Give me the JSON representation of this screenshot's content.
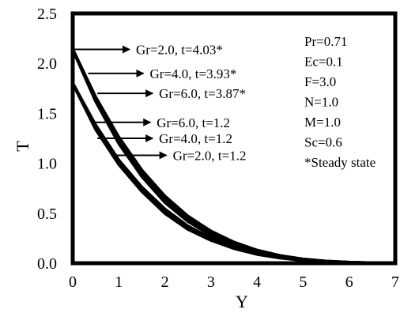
{
  "chart_data": {
    "type": "line",
    "xlabel": "Y",
    "ylabel": "T",
    "xlim": [
      0,
      7
    ],
    "ylim": [
      0,
      2.5
    ],
    "x_ticks": [
      "0",
      "1",
      "2",
      "3",
      "4",
      "5",
      "6",
      "7"
    ],
    "y_ticks": [
      "0.0",
      "0.5",
      "1.0",
      "1.5",
      "2.0",
      "2.5"
    ],
    "grid": false,
    "legend": "none",
    "series": [
      {
        "name": "Gr=2.0, t=4.03*",
        "x": [
          0,
          0.5,
          1,
          1.5,
          2,
          2.5,
          3,
          3.5,
          4,
          4.5,
          5,
          5.5,
          6,
          6.5,
          7
        ],
        "y": [
          2.14,
          1.62,
          1.2,
          0.87,
          0.61,
          0.42,
          0.28,
          0.18,
          0.11,
          0.065,
          0.035,
          0.017,
          0.007,
          0.002,
          0.0
        ]
      },
      {
        "name": "Gr=4.0, t=3.93*",
        "x": [
          0,
          0.5,
          1,
          1.5,
          2,
          2.5,
          3,
          3.5,
          4,
          4.5,
          5,
          5.5,
          6,
          6.5,
          7
        ],
        "y": [
          2.14,
          1.64,
          1.23,
          0.9,
          0.64,
          0.44,
          0.3,
          0.19,
          0.12,
          0.07,
          0.038,
          0.019,
          0.008,
          0.002,
          0.0
        ]
      },
      {
        "name": "Gr=6.0, t=3.87*",
        "x": [
          0,
          0.5,
          1,
          1.5,
          2,
          2.5,
          3,
          3.5,
          4,
          4.5,
          5,
          5.5,
          6,
          6.5,
          7
        ],
        "y": [
          2.14,
          1.66,
          1.26,
          0.93,
          0.67,
          0.47,
          0.32,
          0.21,
          0.13,
          0.075,
          0.04,
          0.02,
          0.009,
          0.003,
          0.0
        ]
      },
      {
        "name": "Gr=6.0, t=1.2",
        "x": [
          0,
          0.5,
          1,
          1.5,
          2,
          2.5,
          3,
          3.5,
          4,
          4.5,
          5,
          5.5,
          6,
          6.5,
          7
        ],
        "y": [
          1.8,
          1.38,
          1.03,
          0.76,
          0.54,
          0.37,
          0.25,
          0.16,
          0.1,
          0.06,
          0.033,
          0.016,
          0.007,
          0.002,
          0.0
        ]
      },
      {
        "name": "Gr=4.0, t=1.2",
        "x": [
          0,
          0.5,
          1,
          1.5,
          2,
          2.5,
          3,
          3.5,
          4,
          4.5,
          5,
          5.5,
          6,
          6.5,
          7
        ],
        "y": [
          1.8,
          1.36,
          1.01,
          0.74,
          0.52,
          0.36,
          0.24,
          0.155,
          0.095,
          0.056,
          0.031,
          0.015,
          0.006,
          0.002,
          0.0
        ]
      },
      {
        "name": "Gr=2.0, t=1.2",
        "x": [
          0,
          0.5,
          1,
          1.5,
          2,
          2.5,
          3,
          3.5,
          4,
          4.5,
          5,
          5.5,
          6,
          6.5,
          7
        ],
        "y": [
          1.8,
          1.34,
          0.99,
          0.72,
          0.5,
          0.34,
          0.23,
          0.148,
          0.09,
          0.053,
          0.029,
          0.014,
          0.006,
          0.002,
          0.0
        ]
      }
    ],
    "annotations": [
      {
        "text": "Gr=2.0, t=4.03*",
        "x": 0.0,
        "y": 2.14
      },
      {
        "text": "Gr=4.0, t=3.93*",
        "x": 0.3,
        "y": 1.9
      },
      {
        "text": "Gr=6.0, t=3.87*",
        "x": 0.5,
        "y": 1.7
      },
      {
        "text": "Gr=6.0, t=1.2",
        "x": 0.45,
        "y": 1.41
      },
      {
        "text": "Gr=4.0, t=1.2",
        "x": 0.5,
        "y": 1.25
      },
      {
        "text": "Gr=2.0, t=1.2",
        "x": 0.8,
        "y": 1.08
      }
    ],
    "parameters": [
      "Pr=0.71",
      "Ec=0.1",
      "F=3.0",
      "N=1.0",
      "M=1.0",
      "Sc=0.6",
      "*Steady state"
    ],
    "colors": {
      "line": "#000000",
      "background": "#ffffff"
    }
  }
}
